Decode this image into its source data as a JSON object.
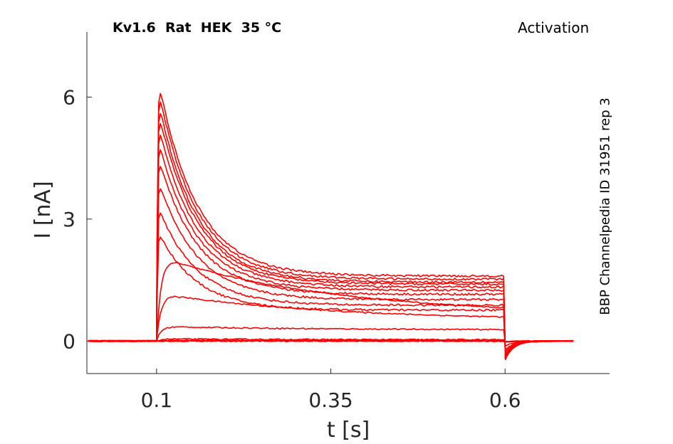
{
  "header": {
    "title": "Kv1.6  Rat  HEK  35 °C",
    "protocol": "Activation",
    "side_label": "BBP Channelpedia ID 31951 rep 3"
  },
  "chart_data": {
    "type": "line",
    "title": "Kv1.6  Rat  HEK  35 °C",
    "xlabel": "t [s]",
    "ylabel": "I [nA]",
    "xlim": [
      0.0,
      0.75
    ],
    "ylim": [
      -0.8,
      7.6
    ],
    "xticks": [
      0.1,
      0.35,
      0.6
    ],
    "xtick_labels": [
      "0.1",
      "0.35",
      "0.6"
    ],
    "yticks": [
      0,
      3,
      6
    ],
    "ytick_labels": [
      "0",
      "3",
      "6"
    ],
    "color": "#ff0000",
    "grid": false,
    "step_start": 0.1,
    "step_end": 0.6,
    "trace_end": 0.7,
    "tail_dip": -0.45,
    "series": [
      {
        "peak": 0.0,
        "steady": 0.0
      },
      {
        "peak": 0.0,
        "steady": 0.0
      },
      {
        "peak": 0.0,
        "steady": 0.0
      },
      {
        "peak": 0.0,
        "steady": 0.02
      },
      {
        "peak": 0.05,
        "steady": 0.03
      },
      {
        "peak": 0.35,
        "steady": 0.27
      },
      {
        "peak": 1.12,
        "steady": 0.5
      },
      {
        "peak": 1.98,
        "steady": 0.62
      },
      {
        "peak": 2.78,
        "steady": 0.76
      },
      {
        "peak": 3.4,
        "steady": 0.88
      },
      {
        "peak": 4.1,
        "steady": 1.02
      },
      {
        "peak": 4.7,
        "steady": 1.15
      },
      {
        "peak": 5.1,
        "steady": 1.25
      },
      {
        "peak": 5.5,
        "steady": 1.33
      },
      {
        "peak": 5.85,
        "steady": 1.4
      },
      {
        "peak": 6.1,
        "steady": 1.45
      },
      {
        "peak": 6.4,
        "steady": 1.52
      },
      {
        "peak": 6.65,
        "steady": 1.6
      }
    ]
  }
}
